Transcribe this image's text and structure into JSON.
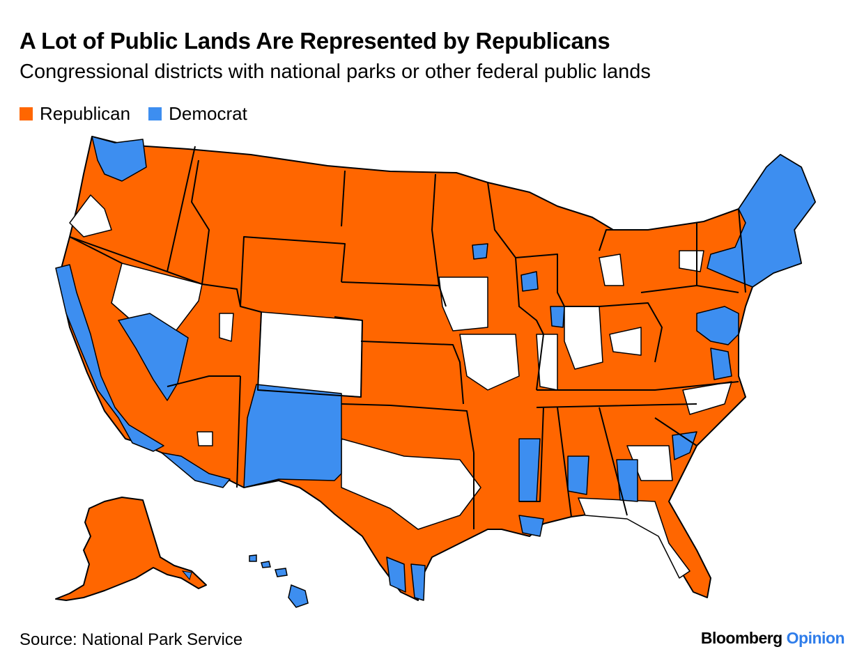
{
  "title": "A Lot of Public Lands Are Represented by Republicans",
  "subtitle": "Congressional districts with national parks or other federal public lands",
  "legend": [
    {
      "label": "Republican",
      "color": "#ff6600"
    },
    {
      "label": "Democrat",
      "color": "#3d8ef0"
    }
  ],
  "colors": {
    "republican": "#ff6600",
    "democrat": "#3d8ef0",
    "none": "#ffffff",
    "border": "#000000"
  },
  "source": "Source: National Park Service",
  "brand": {
    "name": "Bloomberg",
    "section": "Opinion",
    "section_color": "#2f7dea"
  }
}
